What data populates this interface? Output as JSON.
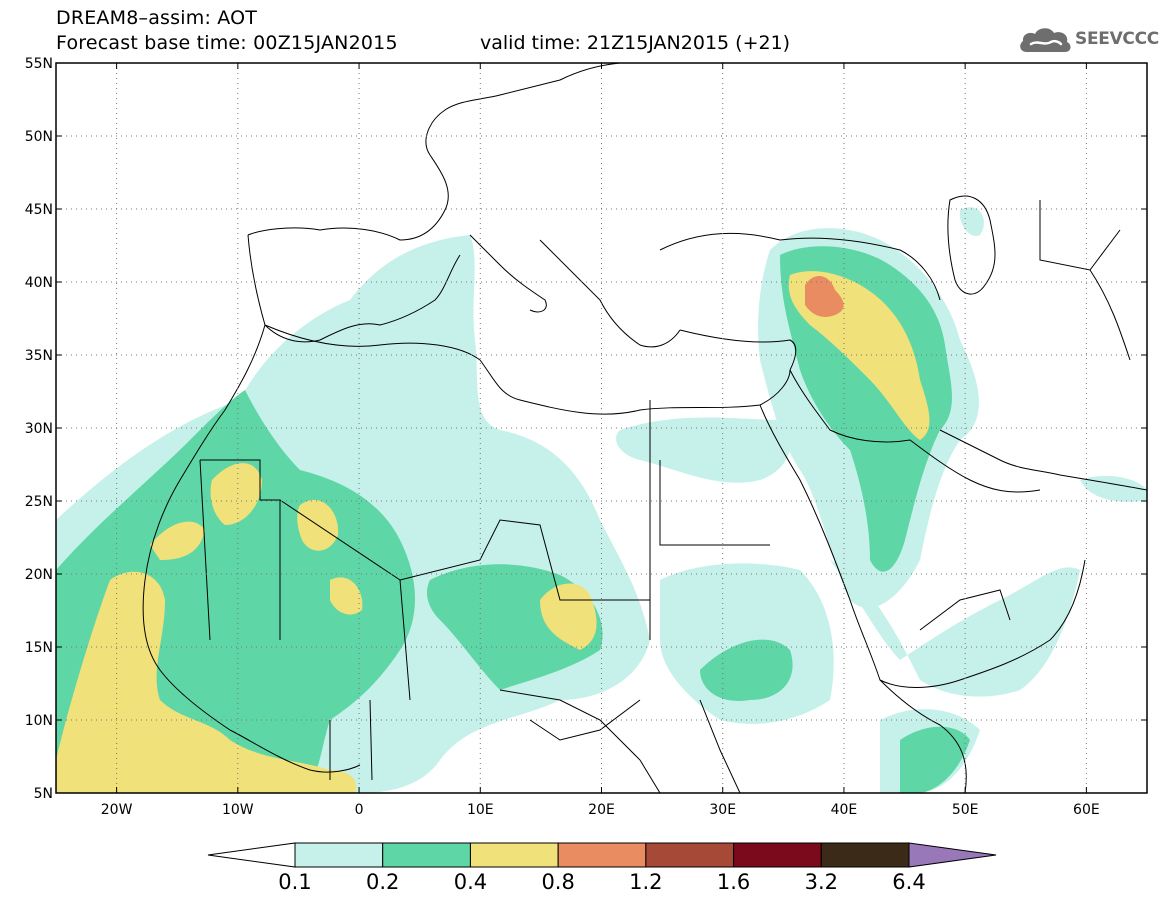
{
  "header": {
    "title_line1": "DREAM8–assim: AOT",
    "base_time": "Forecast base time: 00Z15JAN2015",
    "valid_time": "valid time: 21Z15JAN2015 (+21)",
    "logo_text": "SEEVCCC",
    "logo_icon": "cloud-icon"
  },
  "map": {
    "lon_range": [
      -25,
      65
    ],
    "lat_range": [
      5,
      55
    ],
    "lat_labels": [
      "55N",
      "50N",
      "45N",
      "40N",
      "35N",
      "30N",
      "25N",
      "20N",
      "15N",
      "10N",
      "5N"
    ],
    "lon_labels": [
      "20W",
      "10W",
      "0",
      "10E",
      "20E",
      "30E",
      "40E",
      "50E",
      "60E"
    ],
    "gridlines": "dotted"
  },
  "colorbar": {
    "thresholds": [
      "0.1",
      "0.2",
      "0.4",
      "0.8",
      "1.2",
      "1.6",
      "3.2",
      "6.4"
    ],
    "colors": [
      "#ffffff",
      "#c5f1ea",
      "#5fd6a6",
      "#f1e17a",
      "#e98c62",
      "#a64a37",
      "#7a0a1c",
      "#3b2a18",
      "#9878b8"
    ]
  }
}
